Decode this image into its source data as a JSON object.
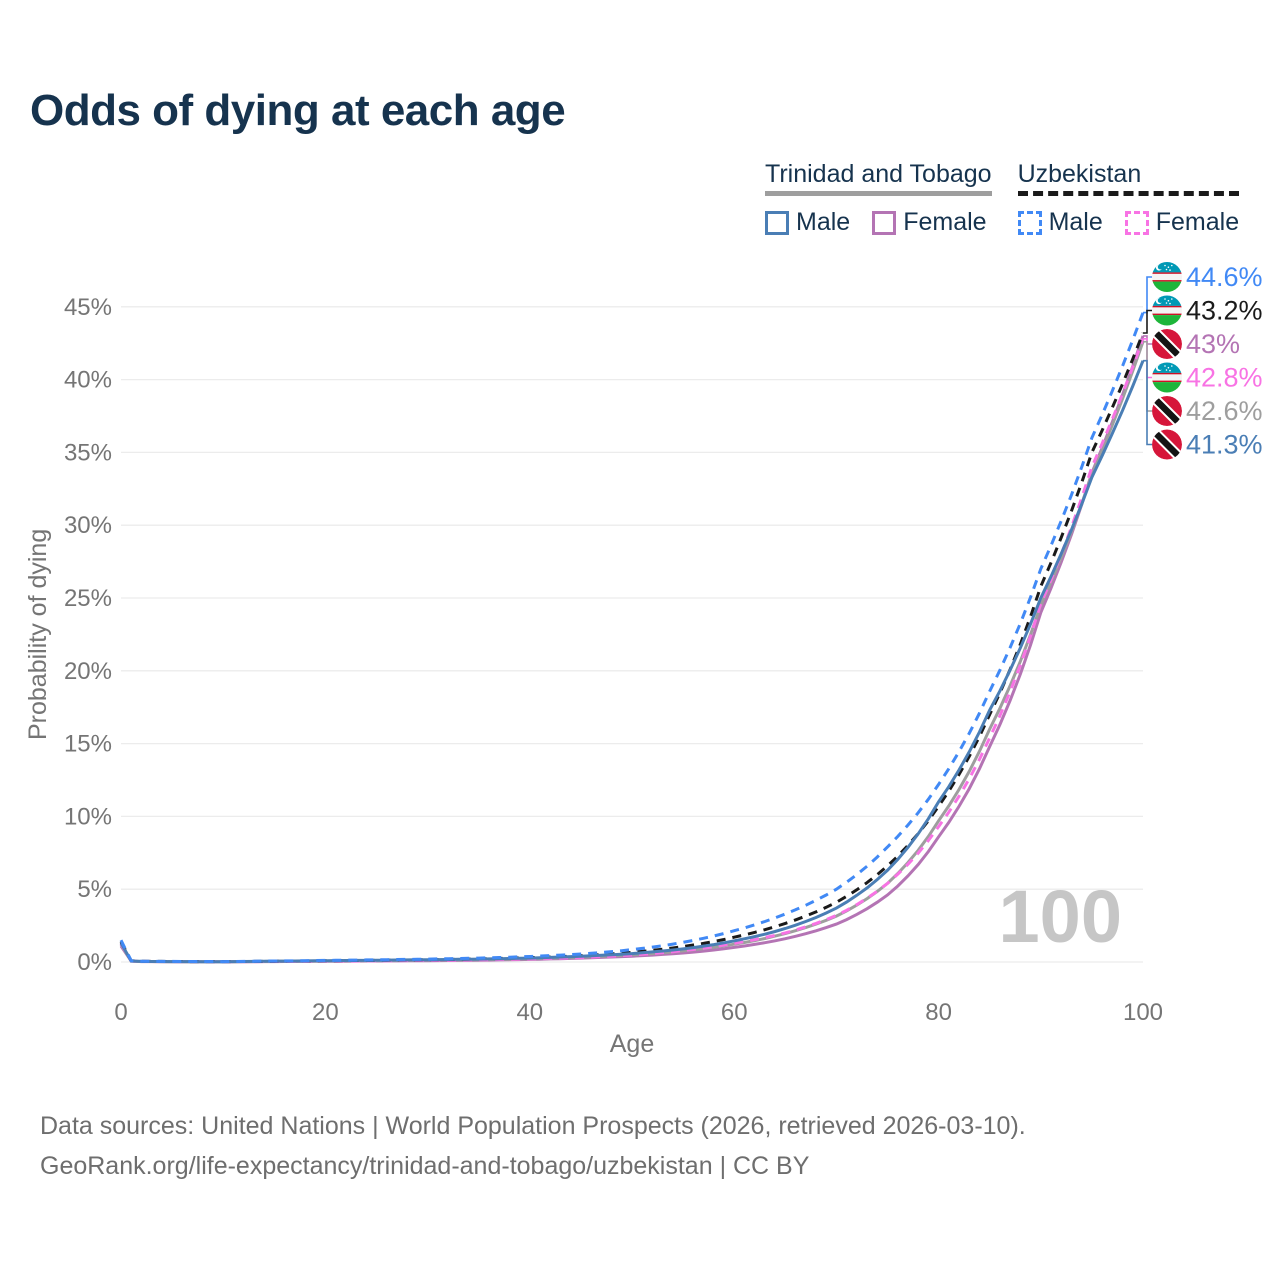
{
  "page": {
    "title": "Odds of dying at each age"
  },
  "legend": {
    "groups": [
      {
        "id": "tt",
        "label": "Trinidad and Tobago",
        "line_style": "solid",
        "line_color": "#9e9e9e",
        "items": [
          {
            "id": "tt_male",
            "label": "Male",
            "color": "#4a7eb5",
            "dash": false
          },
          {
            "id": "tt_female",
            "label": "Female",
            "color": "#b474b4",
            "dash": false
          }
        ]
      },
      {
        "id": "uz",
        "label": "Uzbekistan",
        "line_style": "dashed",
        "line_color": "#1a1a1a",
        "items": [
          {
            "id": "uz_male",
            "label": "Male",
            "color": "#4189f5",
            "dash": true
          },
          {
            "id": "uz_female",
            "label": "Female",
            "color": "#f873e4",
            "dash": true
          }
        ]
      }
    ]
  },
  "chart_data": {
    "type": "line",
    "title": "Odds of dying at each age",
    "xlabel": "Age",
    "ylabel": "Probability of dying",
    "xlim": [
      0,
      100
    ],
    "ylim": [
      0,
      47
    ],
    "xticks": [
      0,
      20,
      40,
      60,
      80,
      100
    ],
    "yticks": [
      0,
      5,
      10,
      15,
      20,
      25,
      30,
      35,
      40,
      45
    ],
    "ytick_suffix": "%",
    "grid": true,
    "legend_position": "top-right",
    "watermark": "100",
    "x": [
      0,
      1,
      2,
      5,
      10,
      15,
      20,
      25,
      30,
      35,
      40,
      45,
      50,
      55,
      60,
      65,
      70,
      75,
      80,
      85,
      90,
      95,
      100
    ],
    "series": [
      {
        "id": "tt_male",
        "name": "Trinidad and Tobago Male",
        "country": "tt",
        "sex": "male",
        "color": "#4a7eb5",
        "dash": false,
        "values": [
          1.3,
          0.07,
          0.04,
          0.03,
          0.02,
          0.06,
          0.09,
          0.12,
          0.16,
          0.2,
          0.27,
          0.4,
          0.58,
          0.9,
          1.45,
          2.3,
          3.7,
          6.3,
          11.0,
          17.3,
          25.0,
          33.3,
          41.3
        ]
      },
      {
        "id": "tt_female",
        "name": "Trinidad and Tobago Female",
        "country": "tt",
        "sex": "female",
        "color": "#b474b4",
        "dash": false,
        "values": [
          1.1,
          0.06,
          0.03,
          0.02,
          0.015,
          0.03,
          0.05,
          0.07,
          0.09,
          0.12,
          0.18,
          0.27,
          0.4,
          0.62,
          1.0,
          1.6,
          2.6,
          4.6,
          8.6,
          14.8,
          24.0,
          33.6,
          43.0
        ]
      },
      {
        "id": "tt_total",
        "name": "Trinidad and Tobago Both sexes",
        "country": "tt",
        "sex": "both",
        "color": "#9e9e9e",
        "dash": false,
        "values": [
          1.2,
          0.065,
          0.035,
          0.025,
          0.018,
          0.045,
          0.07,
          0.1,
          0.13,
          0.16,
          0.22,
          0.33,
          0.49,
          0.76,
          1.22,
          1.95,
          3.15,
          5.4,
          9.7,
          16.0,
          24.5,
          33.5,
          42.6
        ]
      },
      {
        "id": "uz_male",
        "name": "Uzbekistan Male",
        "country": "uz",
        "sex": "male",
        "color": "#4189f5",
        "dash": true,
        "values": [
          1.5,
          0.09,
          0.05,
          0.04,
          0.03,
          0.07,
          0.11,
          0.15,
          0.2,
          0.27,
          0.38,
          0.55,
          0.85,
          1.35,
          2.15,
          3.3,
          5.0,
          7.9,
          12.2,
          18.6,
          27.0,
          36.0,
          44.6
        ]
      },
      {
        "id": "uz_female",
        "name": "Uzbekistan Female",
        "country": "uz",
        "sex": "female",
        "color": "#f873e4",
        "dash": true,
        "values": [
          1.25,
          0.07,
          0.04,
          0.03,
          0.02,
          0.04,
          0.06,
          0.08,
          0.11,
          0.15,
          0.21,
          0.31,
          0.48,
          0.78,
          1.28,
          2.0,
          3.2,
          5.4,
          9.3,
          15.4,
          24.6,
          34.0,
          42.8
        ]
      },
      {
        "id": "uz_total",
        "name": "Uzbekistan Both sexes",
        "country": "uz",
        "sex": "both",
        "color": "#1a1a1a",
        "dash": true,
        "values": [
          1.38,
          0.08,
          0.045,
          0.035,
          0.025,
          0.055,
          0.085,
          0.115,
          0.155,
          0.21,
          0.3,
          0.43,
          0.66,
          1.06,
          1.7,
          2.65,
          4.1,
          6.6,
          10.7,
          17.0,
          25.8,
          35.0,
          43.2
        ]
      }
    ],
    "annotations": [
      {
        "series": "uz_male",
        "country": "uz",
        "label": "44.6%",
        "value": 44.6
      },
      {
        "series": "uz_total",
        "country": "uz",
        "label": "43.2%",
        "value": 43.2
      },
      {
        "series": "tt_female",
        "country": "tt",
        "label": "43%",
        "value": 43.0
      },
      {
        "series": "uz_female",
        "country": "uz",
        "label": "42.8%",
        "value": 42.8
      },
      {
        "series": "tt_total",
        "country": "tt",
        "label": "42.6%",
        "value": 42.6
      },
      {
        "series": "tt_male",
        "country": "tt",
        "label": "41.3%",
        "value": 41.3
      }
    ]
  },
  "colors": {
    "title": "#16334e",
    "axis_text": "#757575",
    "gridline": "#ececec",
    "watermark": "#c6c6c6",
    "footer_text": "#6e6e6e"
  },
  "footer": {
    "line1": "Data sources: United Nations | World Population Prospects (2026, retrieved 2026-03-10).",
    "line2": "GeoRank.org/life-expectancy/trinidad-and-tobago/uzbekistan | CC BY"
  }
}
